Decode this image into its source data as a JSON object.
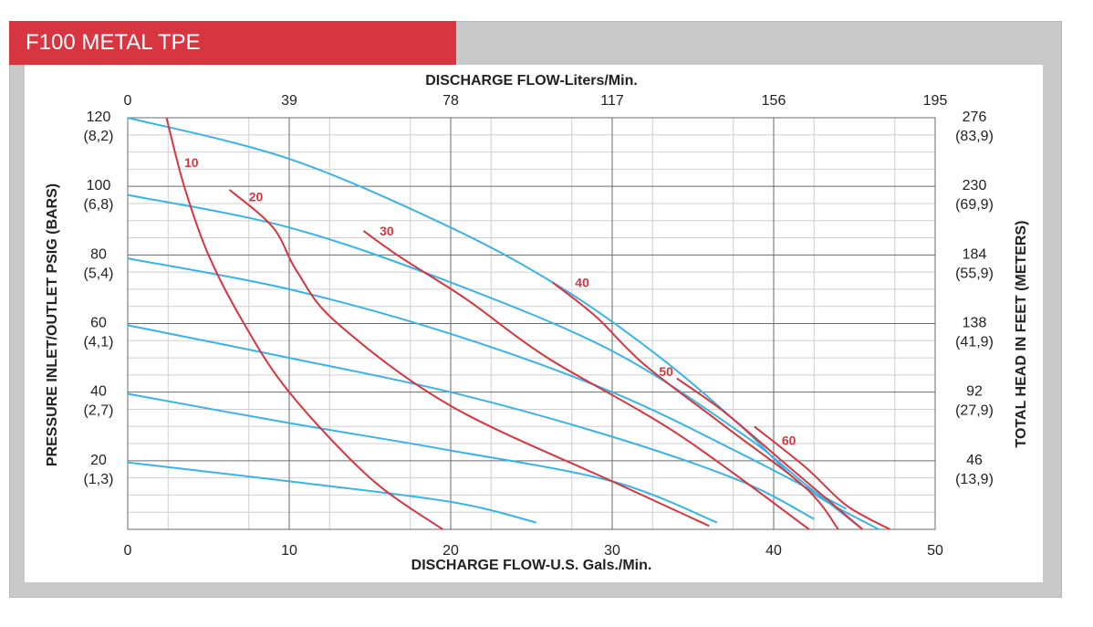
{
  "header": {
    "title": "F100 METAL TPE"
  },
  "colors": {
    "header_bg": "#d7353f",
    "pressure_curve": "#3ab4e6",
    "air_curve": "#d7353f",
    "frame": "#c9c9c9"
  },
  "chart_data": {
    "type": "line",
    "title": "",
    "xlabel": "DISCHARGE FLOW-U.S. Gals./Min.",
    "x2label": "DISCHARGE FLOW-Liters/Min.",
    "ylabel": "PRESSURE INLET/OUTLET PSIG (BARS)",
    "y2label": "TOTAL HEAD IN FEET (METERS)",
    "xlim": [
      0,
      50
    ],
    "ylim": [
      0,
      120
    ],
    "grid": true,
    "x_ticks": [
      "0",
      "10",
      "20",
      "30",
      "40",
      "50"
    ],
    "x2_ticks": [
      "0",
      "39",
      "78",
      "117",
      "156",
      "195"
    ],
    "y_ticks": [
      {
        "value": 120,
        "psi": "120",
        "bar": "(8,2)",
        "feet": "276",
        "meters": "(83,9)"
      },
      {
        "value": 100,
        "psi": "100",
        "bar": "(6,8)",
        "feet": "230",
        "meters": "(69,9)"
      },
      {
        "value": 80,
        "psi": "80",
        "bar": "(5,4)",
        "feet": "184",
        "meters": "(55,9)"
      },
      {
        "value": 60,
        "psi": "60",
        "bar": "(4,1)",
        "feet": "138",
        "meters": "(41,9)"
      },
      {
        "value": 40,
        "psi": "40",
        "bar": "(2,7)",
        "feet": "92",
        "meters": "(27,9)"
      },
      {
        "value": 20,
        "psi": "20",
        "bar": "(1,3)",
        "feet": "46",
        "meters": "(13,9)"
      }
    ],
    "pressure_curves": [
      {
        "points": [
          [
            0,
            120
          ],
          [
            10,
            108
          ],
          [
            20,
            88
          ],
          [
            27,
            70
          ],
          [
            33,
            50
          ],
          [
            38,
            30
          ],
          [
            42,
            12
          ],
          [
            46.5,
            0
          ]
        ]
      },
      {
        "points": [
          [
            0,
            97.5
          ],
          [
            10,
            88
          ],
          [
            20,
            72
          ],
          [
            30,
            52
          ],
          [
            38,
            28
          ],
          [
            42,
            13
          ],
          [
            45.5,
            0
          ]
        ]
      },
      {
        "points": [
          [
            0,
            79
          ],
          [
            10,
            70
          ],
          [
            20,
            57
          ],
          [
            30,
            40
          ],
          [
            38,
            22
          ],
          [
            44.5,
            6
          ]
        ]
      },
      {
        "points": [
          [
            0,
            59.5
          ],
          [
            10,
            50
          ],
          [
            20,
            40
          ],
          [
            30,
            27
          ],
          [
            38,
            14
          ],
          [
            42.5,
            3
          ]
        ]
      },
      {
        "points": [
          [
            0,
            39.5
          ],
          [
            10,
            31
          ],
          [
            20,
            23
          ],
          [
            30,
            14
          ],
          [
            36.5,
            2
          ]
        ]
      },
      {
        "points": [
          [
            0,
            19.5
          ],
          [
            10,
            14
          ],
          [
            20,
            8
          ],
          [
            25.3,
            2
          ]
        ]
      }
    ],
    "air_curves": [
      {
        "label": "10",
        "label_at": [
          3.5,
          107
        ],
        "points": [
          [
            2.4,
            120
          ],
          [
            3.5,
            100
          ],
          [
            5,
            80
          ],
          [
            7.2,
            60
          ],
          [
            10,
            40
          ],
          [
            15,
            15
          ],
          [
            19.5,
            0
          ]
        ]
      },
      {
        "label": "20",
        "label_at": [
          7.5,
          97
        ],
        "points": [
          [
            6.3,
            99
          ],
          [
            9,
            88
          ],
          [
            10.5,
            75
          ],
          [
            13,
            60
          ],
          [
            20,
            36
          ],
          [
            30,
            14
          ],
          [
            36,
            1
          ]
        ]
      },
      {
        "label": "30",
        "label_at": [
          15.6,
          87
        ],
        "points": [
          [
            14.6,
            87
          ],
          [
            17,
            79
          ],
          [
            21,
            67
          ],
          [
            26,
            50
          ],
          [
            34,
            28
          ],
          [
            42.2,
            0
          ]
        ]
      },
      {
        "label": "40",
        "label_at": [
          27.7,
          72
        ],
        "points": [
          [
            26.3,
            72
          ],
          [
            29,
            62
          ],
          [
            32,
            48
          ],
          [
            37,
            30
          ],
          [
            42,
            12
          ],
          [
            44,
            0
          ]
        ]
      },
      {
        "label": "50",
        "label_at": [
          32.9,
          46
        ],
        "points": [
          [
            34,
            44
          ],
          [
            37,
            34
          ],
          [
            41,
            18
          ],
          [
            45.5,
            0
          ]
        ]
      },
      {
        "label": "60",
        "label_at": [
          40.5,
          26
        ],
        "points": [
          [
            38.8,
            30
          ],
          [
            42,
            18
          ],
          [
            44.5,
            7
          ],
          [
            47.2,
            0
          ]
        ]
      }
    ]
  }
}
